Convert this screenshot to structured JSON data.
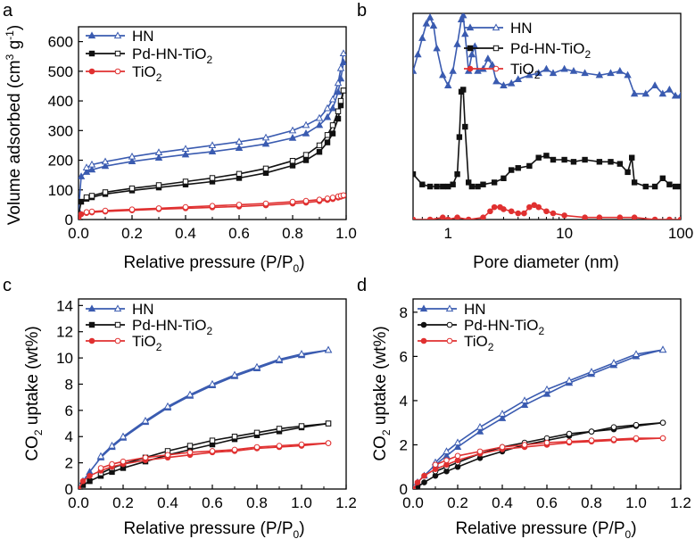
{
  "figure": {
    "panels": [
      "a",
      "b",
      "c",
      "d"
    ]
  },
  "colors": {
    "HN": "#3a5bb0",
    "Pd-HN-TiO2": "#111111",
    "TiO2": "#e03030"
  },
  "chart_data": [
    {
      "id": "a",
      "type": "line",
      "xlabel": "Relative pressure (P/P0)",
      "ylabel": "Volume adsorbed (cm3 g-1)",
      "xlim": [
        0.0,
        1.0
      ],
      "ylim": [
        0,
        650
      ],
      "xticks": [
        "0.0",
        "0.2",
        "0.4",
        "0.6",
        "0.8",
        "1.0"
      ],
      "xtick_values": [
        0.0,
        0.2,
        0.4,
        0.6,
        0.8,
        1.0
      ],
      "yticks": [
        "0",
        "100",
        "200",
        "300",
        "400",
        "500",
        "600"
      ],
      "ytick_values": [
        0,
        100,
        200,
        300,
        400,
        500,
        600
      ],
      "legend": [
        "HN",
        "Pd-HN-TiO2",
        "TiO2"
      ],
      "legend_position": "top-left",
      "series": [
        {
          "name": "HN",
          "color": "#3a5bb0",
          "marker": "triangle",
          "x": [
            0.0,
            0.01,
            0.03,
            0.05,
            0.1,
            0.2,
            0.3,
            0.4,
            0.5,
            0.6,
            0.7,
            0.8,
            0.85,
            0.9,
            0.93,
            0.95,
            0.97,
            0.98,
            0.99
          ],
          "adsorption": [
            30,
            145,
            160,
            168,
            180,
            196,
            208,
            219,
            229,
            241,
            255,
            275,
            290,
            318,
            345,
            375,
            430,
            475,
            530
          ],
          "desorption": [
            null,
            null,
            175,
            185,
            195,
            212,
            226,
            238,
            250,
            262,
            276,
            300,
            318,
            342,
            375,
            405,
            460,
            510,
            560
          ]
        },
        {
          "name": "Pd-HN-TiO2",
          "color": "#111111",
          "marker": "square",
          "x": [
            0.0,
            0.01,
            0.03,
            0.05,
            0.1,
            0.2,
            0.3,
            0.4,
            0.5,
            0.6,
            0.7,
            0.8,
            0.85,
            0.9,
            0.93,
            0.95,
            0.97,
            0.98,
            0.99
          ],
          "adsorption": [
            15,
            60,
            70,
            75,
            86,
            98,
            108,
            118,
            128,
            140,
            157,
            182,
            200,
            228,
            260,
            290,
            340,
            385,
            435
          ],
          "desorption": [
            null,
            null,
            75,
            80,
            92,
            105,
            116,
            128,
            140,
            154,
            172,
            198,
            218,
            250,
            285,
            318,
            365,
            400,
            435
          ]
        },
        {
          "name": "TiO2",
          "color": "#e03030",
          "marker": "circle",
          "x": [
            0.0,
            0.01,
            0.03,
            0.05,
            0.1,
            0.2,
            0.3,
            0.4,
            0.5,
            0.6,
            0.7,
            0.8,
            0.85,
            0.9,
            0.93,
            0.95,
            0.97,
            0.98,
            0.99
          ],
          "adsorption": [
            5,
            18,
            22,
            24,
            27,
            31,
            35,
            38,
            41,
            44,
            48,
            54,
            57,
            62,
            66,
            69,
            74,
            77,
            80
          ],
          "desorption": [
            null,
            null,
            25,
            27,
            30,
            34,
            38,
            42,
            46,
            50,
            54,
            60,
            63,
            67,
            71,
            74,
            78,
            80,
            82
          ]
        }
      ]
    },
    {
      "id": "b",
      "type": "line",
      "xlabel": "Pore diameter (nm)",
      "ylabel": "",
      "xscale": "log",
      "xlim": [
        0.5,
        100
      ],
      "ylim": [
        0,
        1
      ],
      "xticks": [
        "1",
        "10",
        "100"
      ],
      "xtick_values": [
        1,
        10,
        100
      ],
      "yticks": [],
      "legend": [
        "HN",
        "Pd-HN-TiO2",
        "TiO2"
      ],
      "legend_position": "top-right",
      "series": [
        {
          "name": "HN",
          "color": "#3a5bb0",
          "marker": "triangle",
          "x": [
            0.5,
            0.55,
            0.6,
            0.65,
            0.7,
            0.75,
            0.8,
            0.9,
            1.0,
            1.1,
            1.2,
            1.3,
            1.35,
            1.4,
            1.5,
            1.6,
            1.7,
            1.8,
            2.0,
            2.2,
            2.4,
            2.6,
            3.0,
            3.5,
            4.0,
            5.0,
            6.0,
            7.0,
            8.0,
            10.0,
            12.0,
            15.0,
            20.0,
            25.0,
            30.0,
            35.0,
            40.0,
            50.0,
            60.0,
            70.0,
            80.0,
            90.0,
            100.0
          ],
          "y": [
            0.72,
            0.8,
            0.88,
            0.95,
            0.98,
            0.94,
            0.83,
            0.7,
            0.65,
            0.72,
            0.85,
            0.97,
            0.99,
            0.9,
            0.72,
            0.8,
            0.84,
            0.72,
            0.73,
            0.78,
            0.75,
            0.67,
            0.65,
            0.66,
            0.68,
            0.7,
            0.71,
            0.73,
            0.71,
            0.73,
            0.72,
            0.71,
            0.7,
            0.71,
            0.72,
            0.7,
            0.61,
            0.61,
            0.65,
            0.61,
            0.63,
            0.6,
            0.6
          ]
        },
        {
          "name": "Pd-HN-TiO2",
          "color": "#111111",
          "marker": "square",
          "x": [
            0.5,
            0.6,
            0.7,
            0.8,
            0.9,
            1.0,
            1.1,
            1.2,
            1.25,
            1.3,
            1.35,
            1.4,
            1.5,
            1.6,
            1.8,
            2.0,
            2.5,
            3.0,
            3.5,
            4.0,
            5.0,
            6.0,
            7.0,
            8.0,
            10.0,
            12.0,
            15.0,
            20.0,
            25.0,
            30.0,
            35.0,
            38.0,
            40.0,
            50.0,
            60.0,
            70.0,
            80.0,
            90.0,
            100.0
          ],
          "y": [
            0.22,
            0.17,
            0.16,
            0.16,
            0.16,
            0.16,
            0.17,
            0.22,
            0.4,
            0.62,
            0.63,
            0.45,
            0.18,
            0.16,
            0.16,
            0.17,
            0.18,
            0.2,
            0.24,
            0.25,
            0.26,
            0.3,
            0.31,
            0.29,
            0.29,
            0.28,
            0.29,
            0.28,
            0.28,
            0.27,
            0.23,
            0.3,
            0.18,
            0.16,
            0.16,
            0.2,
            0.17,
            0.16,
            0.16
          ]
        },
        {
          "name": "TiO2",
          "color": "#e03030",
          "marker": "circle",
          "x": [
            0.5,
            0.7,
            0.9,
            1.0,
            1.2,
            1.5,
            2.0,
            2.3,
            2.5,
            2.8,
            3.0,
            3.5,
            4.0,
            4.5,
            5.0,
            5.5,
            6.0,
            7.0,
            8.0,
            10.0,
            15.0,
            20.0,
            30.0,
            40.0,
            60.0,
            80.0,
            100.0
          ],
          "y": [
            0.0,
            0.0,
            0.01,
            0.0,
            0.01,
            0.0,
            0.01,
            0.04,
            0.06,
            0.06,
            0.05,
            0.04,
            0.03,
            0.03,
            0.06,
            0.07,
            0.06,
            0.04,
            0.03,
            0.02,
            0.01,
            0.01,
            0.01,
            0.01,
            0.0,
            0.0,
            0.0
          ]
        }
      ]
    },
    {
      "id": "c",
      "type": "line",
      "xlabel": "Relative pressure (P/P0)",
      "ylabel": "CO2 uptake (wt%)",
      "xlim": [
        0.0,
        1.2
      ],
      "ylim": [
        0,
        14.5
      ],
      "xticks": [
        "0.0",
        "0.2",
        "0.4",
        "0.6",
        "0.8",
        "1.0",
        "1.2"
      ],
      "xtick_values": [
        0.0,
        0.2,
        0.4,
        0.6,
        0.8,
        1.0,
        1.2
      ],
      "yticks": [
        "0",
        "2",
        "4",
        "6",
        "8",
        "10",
        "12",
        "14"
      ],
      "ytick_values": [
        0,
        2,
        4,
        6,
        8,
        10,
        12,
        14
      ],
      "legend": [
        "HN",
        "Pd-HN-TiO2",
        "TiO2"
      ],
      "legend_position": "top-left",
      "series": [
        {
          "name": "HN",
          "color": "#3a5bb0",
          "marker": "triangle",
          "x": [
            0.0,
            0.02,
            0.05,
            0.1,
            0.15,
            0.2,
            0.3,
            0.4,
            0.5,
            0.6,
            0.7,
            0.8,
            0.9,
            1.0,
            1.12
          ],
          "adsorption": [
            0.0,
            0.6,
            1.3,
            2.4,
            3.2,
            3.9,
            5.1,
            6.2,
            7.1,
            7.9,
            8.6,
            9.2,
            9.8,
            10.2,
            10.6
          ],
          "desorption": [
            null,
            null,
            null,
            2.5,
            3.3,
            4.0,
            5.2,
            6.3,
            7.2,
            8.0,
            8.7,
            9.3,
            9.9,
            10.3,
            10.6
          ]
        },
        {
          "name": "Pd-HN-TiO2",
          "color": "#111111",
          "marker": "square",
          "x": [
            0.0,
            0.02,
            0.05,
            0.1,
            0.15,
            0.2,
            0.3,
            0.4,
            0.5,
            0.6,
            0.7,
            0.8,
            0.9,
            1.0,
            1.12
          ],
          "adsorption": [
            0.0,
            0.3,
            0.6,
            1.0,
            1.3,
            1.6,
            2.1,
            2.6,
            3.0,
            3.4,
            3.8,
            4.1,
            4.4,
            4.7,
            5.0
          ],
          "desorption": [
            null,
            null,
            null,
            1.2,
            1.6,
            1.9,
            2.4,
            2.9,
            3.3,
            3.7,
            4.0,
            4.3,
            4.6,
            4.8,
            5.0
          ]
        },
        {
          "name": "TiO2",
          "color": "#e03030",
          "marker": "circle",
          "x": [
            0.0,
            0.02,
            0.05,
            0.1,
            0.15,
            0.2,
            0.3,
            0.4,
            0.5,
            0.6,
            0.7,
            0.8,
            0.9,
            1.0,
            1.12
          ],
          "adsorption": [
            0.0,
            0.6,
            1.0,
            1.4,
            1.7,
            1.9,
            2.2,
            2.4,
            2.6,
            2.8,
            2.9,
            3.1,
            3.2,
            3.3,
            3.5
          ],
          "desorption": [
            null,
            null,
            null,
            1.6,
            1.9,
            2.1,
            2.4,
            2.6,
            2.8,
            2.9,
            3.0,
            3.2,
            3.3,
            3.4,
            3.5
          ]
        }
      ]
    },
    {
      "id": "d",
      "type": "line",
      "xlabel": "Relative pressure (P/P0)",
      "ylabel": "CO2 uptake (wt%)",
      "xlim": [
        0.0,
        1.2
      ],
      "ylim": [
        0,
        8.6
      ],
      "xticks": [
        "0.0",
        "0.2",
        "0.4",
        "0.6",
        "0.8",
        "1.0",
        "1.2"
      ],
      "xtick_values": [
        0.0,
        0.2,
        0.4,
        0.6,
        0.8,
        1.0,
        1.2
      ],
      "yticks": [
        "0",
        "2",
        "4",
        "6",
        "8"
      ],
      "ytick_values": [
        0,
        2,
        4,
        6,
        8
      ],
      "legend": [
        "HN",
        "Pd-HN-TiO2",
        "TiO2"
      ],
      "legend_position": "top-left",
      "series": [
        {
          "name": "HN",
          "color": "#3a5bb0",
          "marker": "triangle",
          "x": [
            0.0,
            0.02,
            0.05,
            0.1,
            0.15,
            0.2,
            0.3,
            0.4,
            0.5,
            0.6,
            0.7,
            0.8,
            0.9,
            1.0,
            1.12
          ],
          "adsorption": [
            0.0,
            0.3,
            0.6,
            1.1,
            1.5,
            1.9,
            2.6,
            3.2,
            3.8,
            4.3,
            4.8,
            5.2,
            5.6,
            6.0,
            6.3
          ],
          "desorption": [
            null,
            null,
            null,
            1.2,
            1.7,
            2.1,
            2.8,
            3.4,
            4.0,
            4.5,
            4.9,
            5.3,
            5.7,
            6.1,
            6.3
          ]
        },
        {
          "name": "Pd-HN-TiO2",
          "color": "#111111",
          "marker": "circle",
          "x": [
            0.0,
            0.02,
            0.05,
            0.1,
            0.15,
            0.2,
            0.3,
            0.4,
            0.5,
            0.6,
            0.7,
            0.8,
            0.9,
            1.0,
            1.12
          ],
          "adsorption": [
            0.0,
            0.1,
            0.3,
            0.6,
            0.8,
            1.0,
            1.4,
            1.7,
            2.0,
            2.2,
            2.4,
            2.6,
            2.7,
            2.85,
            3.0
          ],
          "desorption": [
            null,
            null,
            null,
            0.8,
            1.0,
            1.2,
            1.6,
            1.9,
            2.1,
            2.3,
            2.5,
            2.6,
            2.8,
            2.9,
            3.0
          ]
        },
        {
          "name": "TiO2",
          "color": "#e03030",
          "marker": "circle",
          "x": [
            0.0,
            0.02,
            0.05,
            0.1,
            0.15,
            0.2,
            0.3,
            0.4,
            0.5,
            0.6,
            0.7,
            0.8,
            0.9,
            1.0,
            1.12
          ],
          "adsorption": [
            0.0,
            0.3,
            0.6,
            0.9,
            1.1,
            1.3,
            1.6,
            1.8,
            1.9,
            2.0,
            2.1,
            2.15,
            2.2,
            2.25,
            2.3
          ],
          "desorption": [
            null,
            null,
            null,
            1.1,
            1.3,
            1.5,
            1.7,
            1.9,
            2.0,
            2.1,
            2.15,
            2.2,
            2.25,
            2.3,
            2.3
          ]
        }
      ]
    }
  ]
}
